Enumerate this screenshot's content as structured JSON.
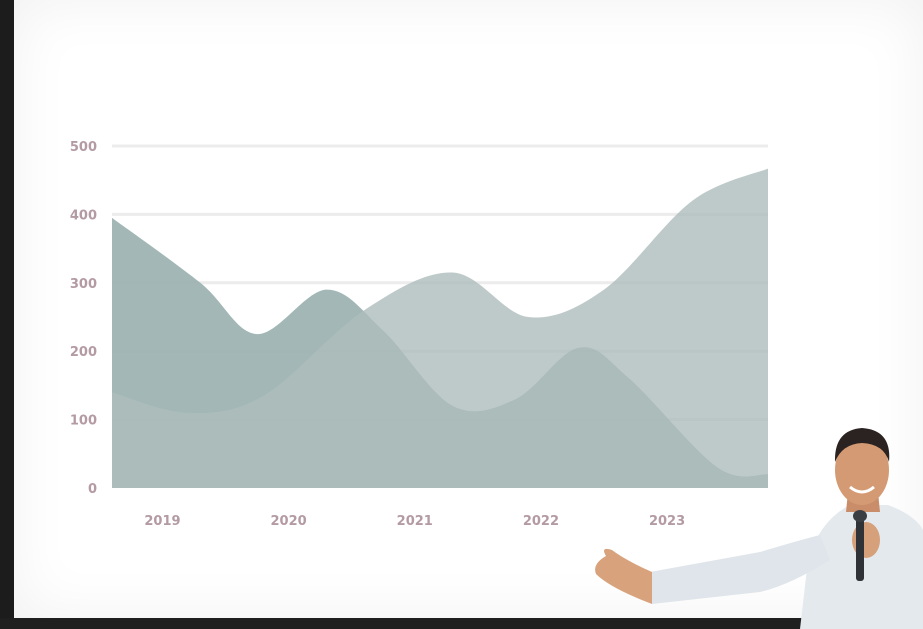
{
  "chart_data": {
    "type": "area",
    "x": [
      "2019",
      "2020",
      "2021",
      "2022",
      "2023"
    ],
    "y_ticks": [
      0,
      100,
      200,
      300,
      400,
      500
    ],
    "ylim": [
      0,
      500
    ],
    "grid": true,
    "title": "",
    "xlabel": "",
    "ylabel": "",
    "series": [
      {
        "points": [
          [
            2018.6,
            395
          ],
          [
            2019.3,
            300
          ],
          [
            2019.75,
            225
          ],
          [
            2020.3,
            290
          ],
          [
            2020.75,
            230
          ],
          [
            2021.3,
            120
          ],
          [
            2021.8,
            130
          ],
          [
            2022.3,
            205
          ],
          [
            2022.7,
            160
          ],
          [
            2023.4,
            30
          ],
          [
            2023.8,
            20
          ]
        ],
        "color": "#9db3b2"
      },
      {
        "points": [
          [
            2018.6,
            140
          ],
          [
            2019.2,
            110
          ],
          [
            2019.8,
            135
          ],
          [
            2020.6,
            260
          ],
          [
            2021.3,
            315
          ],
          [
            2021.9,
            250
          ],
          [
            2022.5,
            290
          ],
          [
            2023.2,
            420
          ],
          [
            2023.8,
            467
          ]
        ],
        "color": "#aebdbc"
      }
    ],
    "colors": {
      "tick": "#b39aa3",
      "grid": "#ececec"
    }
  }
}
